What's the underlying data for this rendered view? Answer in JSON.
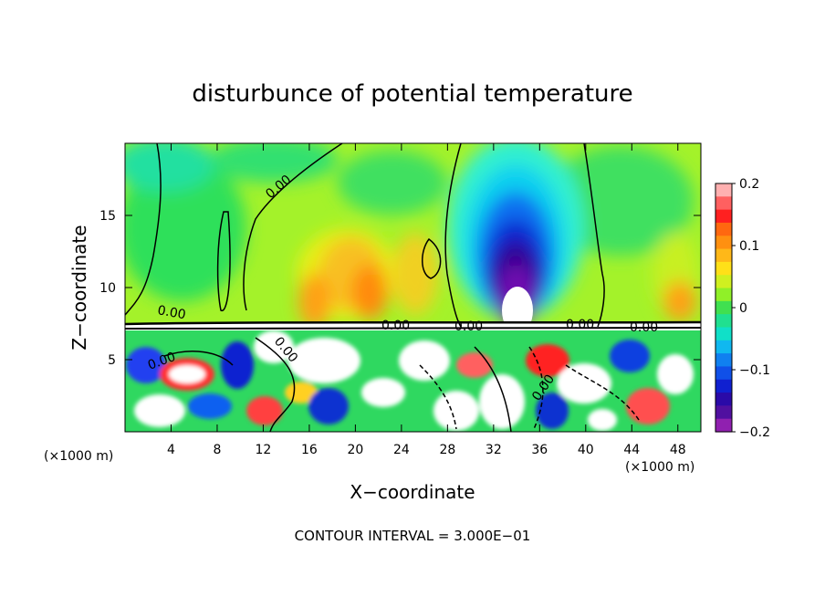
{
  "chart_data": {
    "type": "heatmap",
    "title": "disturbunce of potential temperature",
    "xlabel": "X−coordinate",
    "ylabel": "Z−coordinate",
    "x_unit_left": "(×1000 m)",
    "x_unit_right": "(×1000 m)",
    "xlim": [
      0,
      50
    ],
    "ylim": [
      0,
      20
    ],
    "x_ticks": [
      4,
      8,
      12,
      16,
      20,
      24,
      28,
      32,
      36,
      40,
      44,
      48
    ],
    "y_ticks": [
      5,
      10,
      15
    ],
    "colorbar": {
      "range": [
        -0.2,
        0.2
      ],
      "tick_values": [
        0.2,
        0.1,
        0,
        -0.1,
        -0.2
      ],
      "tick_labels": [
        "0.2",
        "0.1",
        "0",
        "−0.1",
        "−0.2"
      ]
    },
    "contour_labels": [
      "0.00",
      "0.00",
      "0.00",
      "0.00",
      "0.00",
      "0.00",
      "0.00",
      "0.00",
      "0.00"
    ],
    "footer": "CONTOUR INTERVAL = 3.000E−01"
  }
}
